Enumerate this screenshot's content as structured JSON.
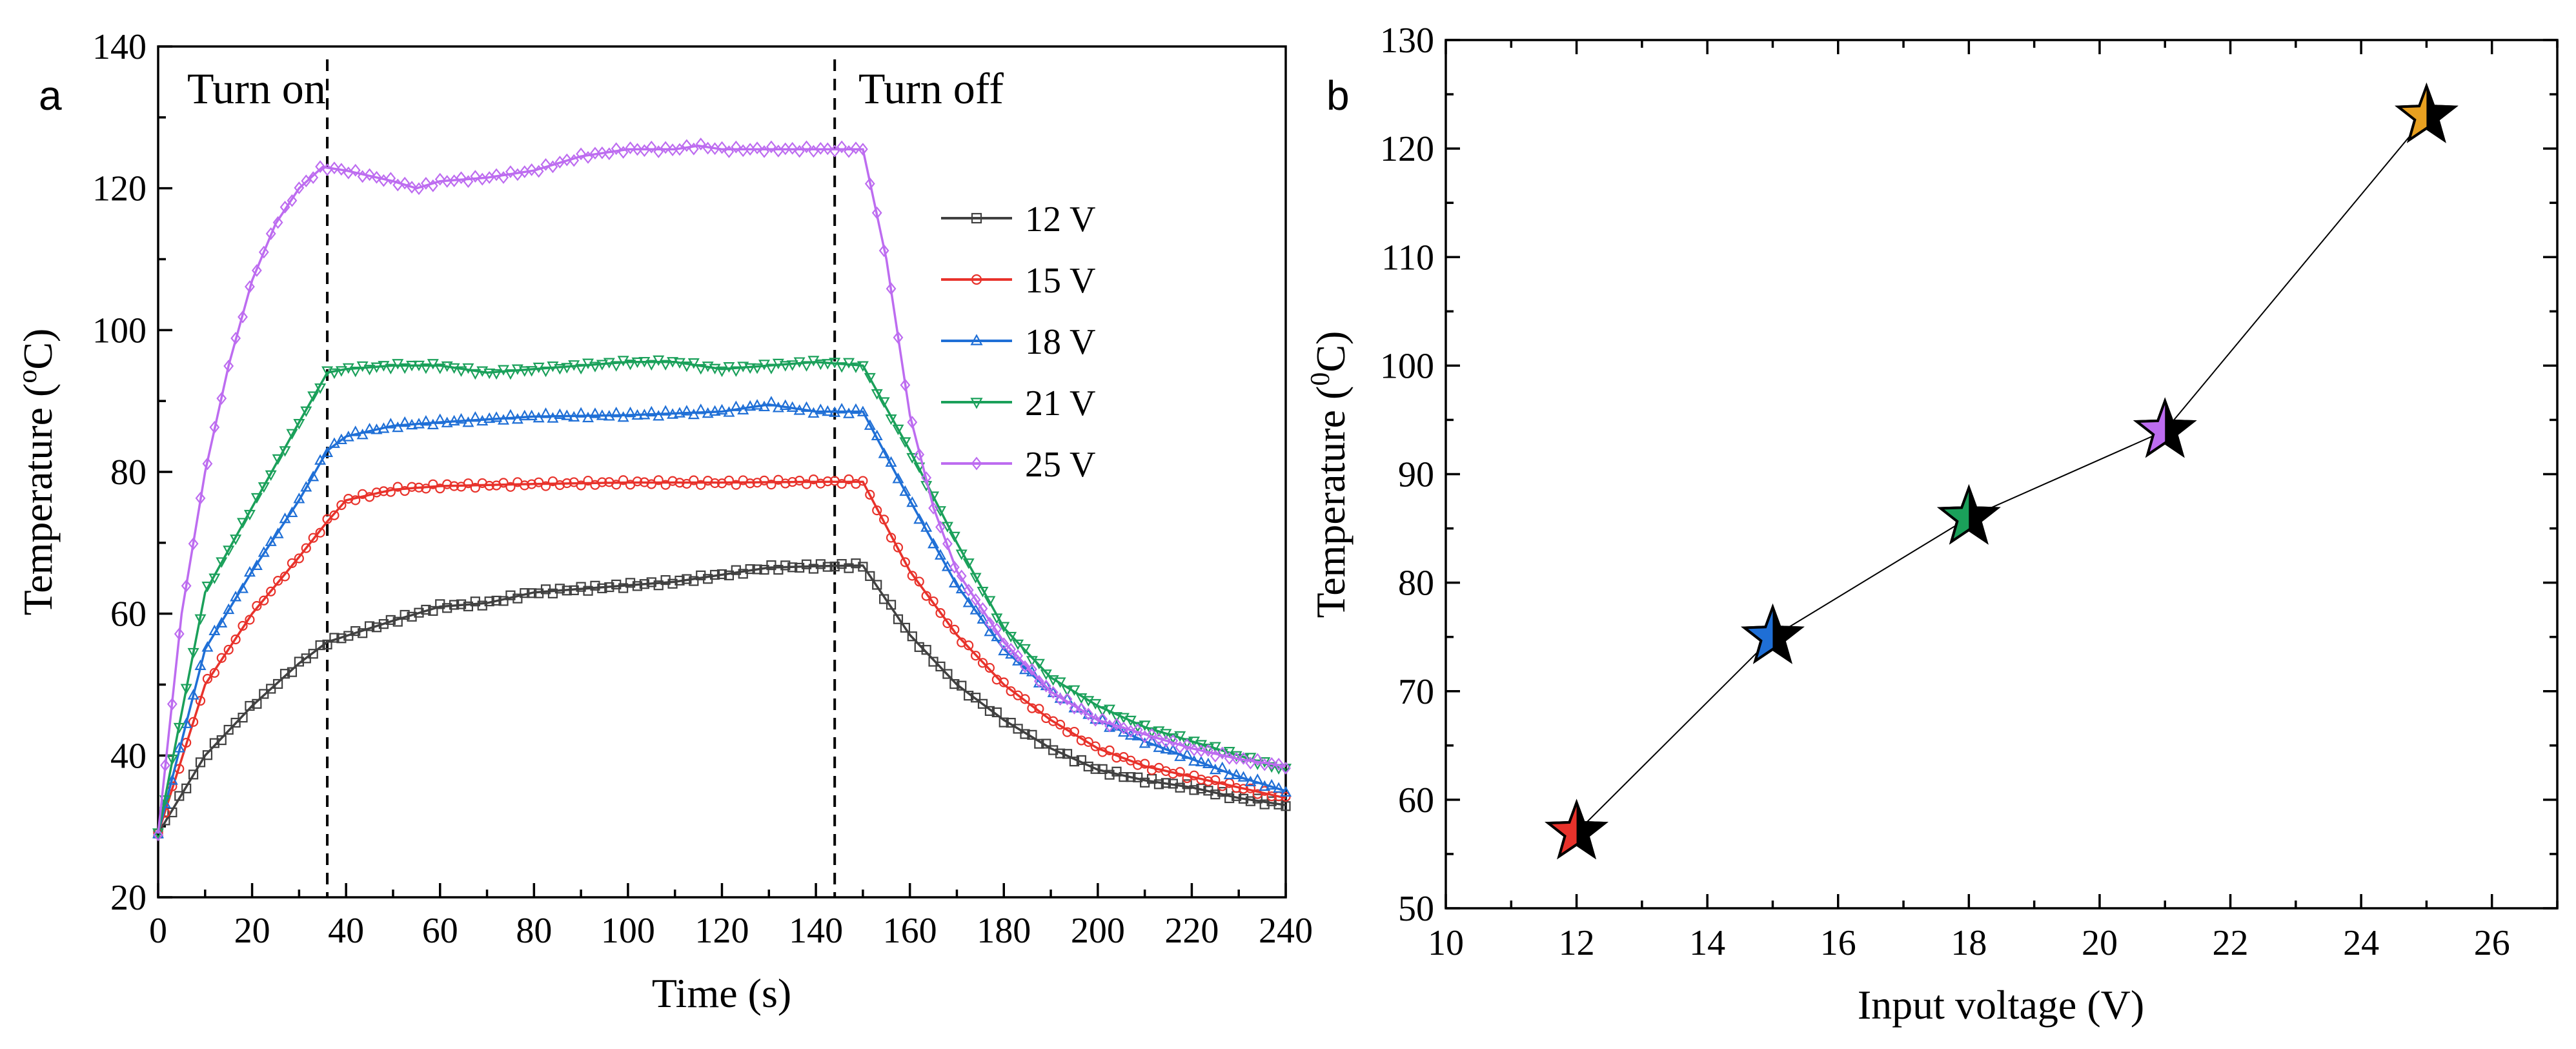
{
  "chart_data": [
    {
      "panel": "a",
      "type": "line",
      "xlabel": "Time (s)",
      "ylabel": "Temperature (°C)",
      "ylabel_parts": {
        "prefix": "Temperature (",
        "sup": "o",
        "suffix": "C)"
      },
      "xlim": [
        0,
        240
      ],
      "ylim": [
        20,
        140
      ],
      "xticks": [
        "0",
        "20",
        "40",
        "60",
        "80",
        "100",
        "120",
        "140",
        "160",
        "180",
        "200",
        "220",
        "240"
      ],
      "yticks": [
        "20",
        "40",
        "60",
        "80",
        "100",
        "120",
        "140"
      ],
      "annotations": [
        {
          "text": "Turn on",
          "x": 36
        },
        {
          "text": "Turn off",
          "x": 144
        }
      ],
      "legend_position": "right",
      "on_time": 36,
      "off_time": 150,
      "end_time": 240,
      "series": [
        {
          "name": "12 V",
          "color": "#404040",
          "marker": "square",
          "start": 29,
          "steady": 67,
          "off_at_end": 33,
          "points": [
            [
              0,
              29
            ],
            [
              10,
              40
            ],
            [
              20,
              47
            ],
            [
              30,
              53
            ],
            [
              36,
              56
            ],
            [
              50,
              59
            ],
            [
              60,
              61
            ],
            [
              70,
              61.5
            ],
            [
              80,
              63
            ],
            [
              90,
              63.5
            ],
            [
              100,
              64
            ],
            [
              110,
              64.5
            ],
            [
              120,
              65.5
            ],
            [
              130,
              66.5
            ],
            [
              140,
              66.7
            ],
            [
              150,
              66.8
            ],
            [
              160,
              57
            ],
            [
              170,
              50
            ],
            [
              180,
              45
            ],
            [
              190,
              41
            ],
            [
              200,
              38
            ],
            [
              210,
              36.5
            ],
            [
              220,
              35.5
            ],
            [
              230,
              34
            ],
            [
              240,
              33
            ]
          ]
        },
        {
          "name": "15 V",
          "color": "#e8322b",
          "marker": "circle",
          "start": 29,
          "steady": 79,
          "off_at_end": 34,
          "points": [
            [
              0,
              29
            ],
            [
              10,
              50
            ],
            [
              20,
              60
            ],
            [
              30,
              68
            ],
            [
              36,
              73
            ],
            [
              40,
              76
            ],
            [
              50,
              77.5
            ],
            [
              60,
              78
            ],
            [
              80,
              78.3
            ],
            [
              100,
              78.5
            ],
            [
              120,
              78.5
            ],
            [
              140,
              78.6
            ],
            [
              150,
              78.6
            ],
            [
              160,
              66
            ],
            [
              170,
              57
            ],
            [
              180,
              50
            ],
            [
              190,
              45
            ],
            [
              200,
              41
            ],
            [
              210,
              38.5
            ],
            [
              220,
              37
            ],
            [
              230,
              35.5
            ],
            [
              240,
              34
            ]
          ]
        },
        {
          "name": "18 V",
          "color": "#1f6fd6",
          "marker": "triangle",
          "start": 29,
          "steady": 89,
          "off_at_end": 35,
          "points": [
            [
              0,
              29
            ],
            [
              10,
              55
            ],
            [
              20,
              66
            ],
            [
              30,
              76
            ],
            [
              36,
              83
            ],
            [
              40,
              85
            ],
            [
              50,
              86.5
            ],
            [
              60,
              87
            ],
            [
              80,
              87.8
            ],
            [
              100,
              88
            ],
            [
              120,
              88.5
            ],
            [
              130,
              89.5
            ],
            [
              140,
              88.5
            ],
            [
              150,
              88.5
            ],
            [
              160,
              76
            ],
            [
              170,
              64
            ],
            [
              180,
              55
            ],
            [
              190,
              49
            ],
            [
              200,
              45
            ],
            [
              210,
              42
            ],
            [
              220,
              39.5
            ],
            [
              230,
              37
            ],
            [
              240,
              35
            ]
          ]
        },
        {
          "name": "21 V",
          "color": "#1aa05a",
          "marker": "triangle-down",
          "start": 29,
          "steady": 95,
          "off_at_end": 38,
          "points": [
            [
              0,
              29
            ],
            [
              10,
              63
            ],
            [
              20,
              75
            ],
            [
              30,
              87
            ],
            [
              36,
              94
            ],
            [
              40,
              94.5
            ],
            [
              50,
              95
            ],
            [
              60,
              95
            ],
            [
              70,
              94
            ],
            [
              80,
              94.5
            ],
            [
              100,
              95.5
            ],
            [
              110,
              95.5
            ],
            [
              120,
              94.5
            ],
            [
              130,
              95
            ],
            [
              140,
              95.5
            ],
            [
              150,
              95
            ],
            [
              160,
              83
            ],
            [
              170,
              70
            ],
            [
              180,
              58
            ],
            [
              190,
              51
            ],
            [
              200,
              47
            ],
            [
              210,
              44
            ],
            [
              220,
              42
            ],
            [
              230,
              40
            ],
            [
              240,
              38
            ]
          ]
        },
        {
          "name": "25 V",
          "color": "#bd6cf0",
          "marker": "diamond",
          "start": 29,
          "steady": 125,
          "off_at_end": 38,
          "points": [
            [
              0,
              29
            ],
            [
              5,
              60
            ],
            [
              10,
              80
            ],
            [
              15,
              95
            ],
            [
              20,
              107
            ],
            [
              25,
              115
            ],
            [
              30,
              120
            ],
            [
              35,
              123
            ],
            [
              40,
              122.5
            ],
            [
              50,
              121
            ],
            [
              55,
              120
            ],
            [
              60,
              121
            ],
            [
              70,
              121.5
            ],
            [
              80,
              122.5
            ],
            [
              90,
              124.5
            ],
            [
              100,
              125.5
            ],
            [
              110,
              125.5
            ],
            [
              115,
              126
            ],
            [
              120,
              125.5
            ],
            [
              130,
              125.5
            ],
            [
              140,
              125.5
            ],
            [
              150,
              125.5
            ],
            [
              155,
              110
            ],
            [
              160,
              88
            ],
            [
              165,
              75
            ],
            [
              170,
              66
            ],
            [
              180,
              56
            ],
            [
              190,
              49
            ],
            [
              200,
              45
            ],
            [
              210,
              43
            ],
            [
              220,
              41
            ],
            [
              230,
              39.5
            ],
            [
              240,
              38.5
            ]
          ]
        }
      ]
    },
    {
      "panel": "b",
      "type": "scatter",
      "xlabel": "Input voltage (V)",
      "ylabel": "Temperature (°C)",
      "ylabel_parts": {
        "prefix": "Temperature (",
        "sup": "0",
        "suffix": "C)"
      },
      "xlim": [
        10,
        27
      ],
      "ylim": [
        50,
        130
      ],
      "xticks": [
        "10",
        "12",
        "14",
        "16",
        "18",
        "20",
        "22",
        "24",
        "26"
      ],
      "yticks": [
        "50",
        "60",
        "70",
        "80",
        "90",
        "100",
        "110",
        "120",
        "130"
      ],
      "points": [
        {
          "x": 12,
          "y": 57,
          "color": "#e8322b"
        },
        {
          "x": 15,
          "y": 75,
          "color": "#1f6fd6"
        },
        {
          "x": 18,
          "y": 86,
          "color": "#1aa05a"
        },
        {
          "x": 21,
          "y": 94,
          "color": "#bd6cf0"
        },
        {
          "x": 25,
          "y": 123,
          "color": "#e8a020"
        }
      ]
    }
  ]
}
